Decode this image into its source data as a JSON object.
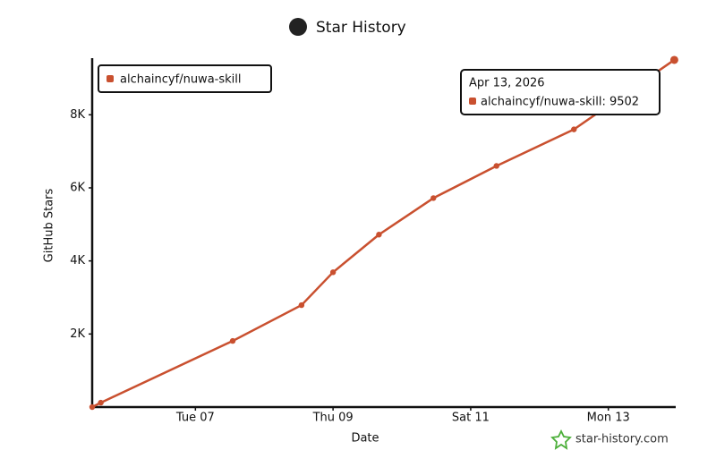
{
  "chart_data": {
    "type": "line",
    "title": "Star History",
    "x_label": "Date",
    "y_label": "GitHub Stars",
    "x": [
      "2026-04-05T12:00",
      "2026-04-05T15:00",
      "2026-04-07T13:00",
      "2026-04-08T13:00",
      "2026-04-09T00:00",
      "2026-04-09T16:00",
      "2026-04-10T11:00",
      "2026-04-11T09:00",
      "2026-04-12T12:00",
      "2026-04-13T23:00"
    ],
    "series": [
      {
        "name": "alchaincyf/nuwa-skill",
        "color": "#c9502f",
        "values": [
          0,
          120,
          1810,
          2790,
          3690,
          4720,
          5720,
          6600,
          7600,
          9502
        ]
      }
    ],
    "xlim": [
      "2026-04-05T12:00",
      "2026-04-13T23:30"
    ],
    "xticks": [
      {
        "value": "2026-04-07",
        "label": "Tue 07"
      },
      {
        "value": "2026-04-09",
        "label": "Thu 09"
      },
      {
        "value": "2026-04-11",
        "label": "Sat 11"
      },
      {
        "value": "2026-04-13",
        "label": "Mon 13"
      }
    ],
    "ylim": [
      0,
      9550
    ],
    "yticks": [
      {
        "value": 2000,
        "label": "2K"
      },
      {
        "value": 4000,
        "label": "4K"
      },
      {
        "value": 6000,
        "label": "6K"
      },
      {
        "value": 8000,
        "label": "8K"
      }
    ],
    "grid": false,
    "legend": "upper left",
    "tooltip": {
      "date": "Apr 13, 2026",
      "label": "alchaincyf/nuwa-skill: 9502"
    },
    "watermark": "star-history.com"
  }
}
